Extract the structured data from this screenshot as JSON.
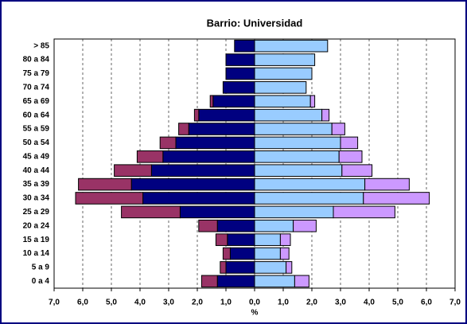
{
  "chart_data": {
    "type": "pyramid",
    "title": "Barrio: Universidad",
    "xlabel": "%",
    "categories": [
      "> 85",
      "80 a 84",
      "75 a 79",
      "70 a 74",
      "65 a 69",
      "60 a 64",
      "55 a 59",
      "50 a 54",
      "45 a 49",
      "40 a 44",
      "35 a 39",
      "30 a 34",
      "25 a 29",
      "20 a 24",
      "15 a 19",
      "10 a 14",
      "5 a 9",
      "0 a 4"
    ],
    "series": [
      {
        "color": "#000080",
        "values": [
          -0.7,
          -1.0,
          -1.0,
          -1.1,
          -1.45,
          -1.95,
          -2.3,
          -2.75,
          -3.2,
          -3.6,
          -4.3,
          -3.9,
          -2.6,
          -1.3,
          -0.95,
          -0.85,
          -1.0,
          -1.3
        ]
      },
      {
        "color": "#993366",
        "values": [
          0,
          0,
          0,
          0,
          -0.1,
          -0.15,
          -0.35,
          -0.55,
          -0.9,
          -1.3,
          -1.85,
          -2.35,
          -2.05,
          -0.65,
          -0.4,
          -0.25,
          -0.2,
          -0.55
        ]
      },
      {
        "color": "#99ccff",
        "values": [
          2.55,
          2.1,
          2.0,
          1.8,
          1.95,
          2.35,
          2.7,
          3.0,
          2.95,
          3.05,
          3.85,
          3.8,
          2.75,
          1.35,
          0.9,
          0.9,
          1.1,
          1.4
        ]
      },
      {
        "color": "#cc99ff",
        "values": [
          0,
          0,
          0,
          0,
          0.15,
          0.25,
          0.45,
          0.6,
          0.8,
          1.05,
          1.55,
          2.3,
          2.15,
          0.8,
          0.35,
          0.3,
          0.2,
          0.5
        ]
      }
    ],
    "xlim": [
      -7,
      7
    ],
    "xticks": [
      {
        "value": -7,
        "label": "7,0"
      },
      {
        "value": -6,
        "label": "6,0"
      },
      {
        "value": -5,
        "label": "5,0"
      },
      {
        "value": -4,
        "label": "4,0"
      },
      {
        "value": -3,
        "label": "3,0"
      },
      {
        "value": -2,
        "label": "2,0"
      },
      {
        "value": -1,
        "label": "1,0"
      },
      {
        "value": 0,
        "label": "0,0"
      },
      {
        "value": 1,
        "label": "1,0"
      },
      {
        "value": 2,
        "label": "2,0"
      },
      {
        "value": 3,
        "label": "3,0"
      },
      {
        "value": 4,
        "label": "4,0"
      },
      {
        "value": 5,
        "label": "5,0"
      },
      {
        "value": 6,
        "label": "6,0"
      },
      {
        "value": 7,
        "label": "7,0"
      }
    ],
    "grid": true
  }
}
